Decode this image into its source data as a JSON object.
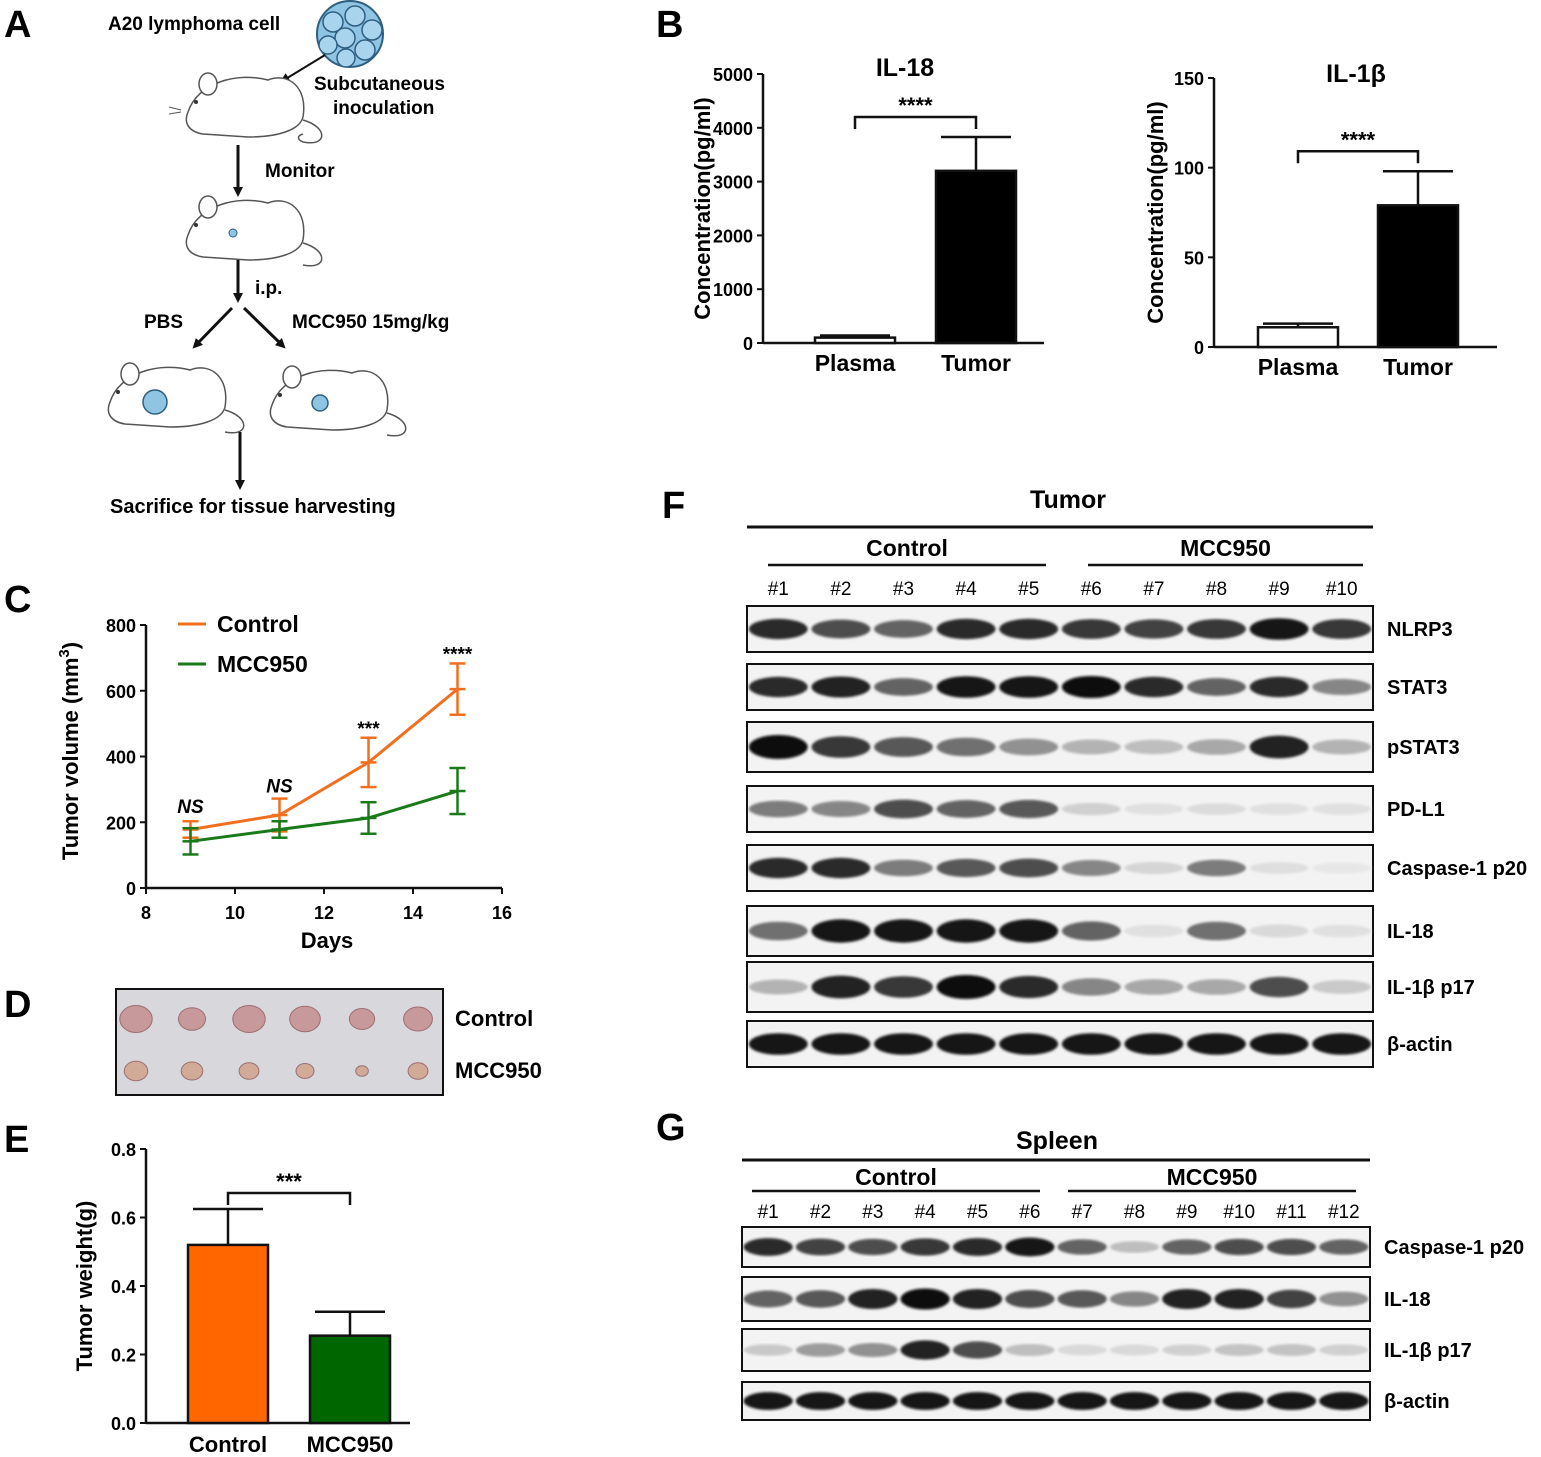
{
  "panel_letters": [
    "A",
    "B",
    "C",
    "D",
    "E",
    "F",
    "G"
  ],
  "schematic": {
    "cell_label": "A20 lymphoma cell",
    "inoculation_label": [
      "Subcutaneous",
      "inoculation"
    ],
    "monitor_label": "Monitor",
    "ip_label": "i.p.",
    "pbs_label": "PBS",
    "mcc_label": "MCC950 15mg/kg",
    "sacrifice_label": "Sacrifice for tissue harvesting"
  },
  "chart_data": [
    {
      "id": "B1",
      "type": "bar",
      "title": "IL-18",
      "xlabel": "",
      "ylabel": "Concentration(pg/ml)",
      "categories": [
        "Plasma",
        "Tumor"
      ],
      "values": [
        100,
        3200
      ],
      "errors": [
        40,
        630
      ],
      "ylim": [
        0,
        5000
      ],
      "yticks": [
        0,
        1000,
        2000,
        3000,
        4000,
        5000
      ],
      "fills": [
        "#ffffff",
        "#000000"
      ],
      "significance": "****"
    },
    {
      "id": "B2",
      "type": "bar",
      "title": "IL-1β",
      "xlabel": "",
      "ylabel": "Concentration(pg/ml)",
      "categories": [
        "Plasma",
        "Tumor"
      ],
      "values": [
        11,
        79
      ],
      "errors": [
        2,
        19
      ],
      "ylim": [
        0,
        150
      ],
      "yticks": [
        0,
        50,
        100,
        150
      ],
      "fills": [
        "#ffffff",
        "#000000"
      ],
      "significance": "****"
    },
    {
      "id": "C",
      "type": "line",
      "xlabel": "Days",
      "ylabel_main": "Tumor volume (mm",
      "ylabel_sup": "3",
      "ylabel_end": ")",
      "xlim": [
        8,
        16
      ],
      "xticks": [
        8,
        10,
        12,
        14,
        16
      ],
      "ylim": [
        0,
        800
      ],
      "yticks": [
        0,
        200,
        400,
        600,
        800
      ],
      "x": [
        9,
        11,
        13,
        15
      ],
      "series": [
        {
          "name": "Control",
          "color": "#f07020",
          "values": [
            178,
            222,
            382,
            605
          ],
          "errors": [
            25,
            50,
            75,
            78
          ]
        },
        {
          "name": "MCC950",
          "color": "#1a7a1a",
          "values": [
            142,
            178,
            213,
            295
          ],
          "errors": [
            40,
            25,
            48,
            70
          ]
        }
      ],
      "annotations": [
        {
          "x": 9,
          "text": "NS",
          "italic": true,
          "y": 228
        },
        {
          "x": 11,
          "text": "NS",
          "italic": true,
          "y": 290
        },
        {
          "x": 13,
          "text": "***",
          "italic": false,
          "y": 465
        },
        {
          "x": 15,
          "text": "****",
          "italic": false,
          "y": 692
        }
      ]
    },
    {
      "id": "E",
      "type": "bar",
      "xlabel": "",
      "ylabel": "Tumor weight(g)",
      "categories": [
        "Control",
        "MCC950"
      ],
      "values": [
        0.52,
        0.255
      ],
      "errors": [
        0.105,
        0.07
      ],
      "ylim": [
        0,
        0.8
      ],
      "yticks": [
        "0.0",
        "0.2",
        "0.4",
        "0.6",
        "0.8"
      ],
      "fills": [
        "#ff6600",
        "#006600"
      ],
      "significance": "***"
    }
  ],
  "photo": {
    "rows": [
      {
        "label": "Control",
        "sizes": [
          0.9,
          0.75,
          0.9,
          0.85,
          0.7,
          0.8
        ],
        "color": "#c8999a"
      },
      {
        "label": "MCC950",
        "sizes": [
          0.65,
          0.6,
          0.55,
          0.5,
          0.35,
          0.55
        ],
        "color": "#d2aa98"
      }
    ]
  },
  "blot_tumor": {
    "title": "Tumor",
    "groups": [
      "Control",
      "MCC950"
    ],
    "lanes": [
      "#1",
      "#2",
      "#3",
      "#4",
      "#5",
      "#6",
      "#7",
      "#8",
      "#9",
      "#10"
    ],
    "rows": [
      {
        "label": "NLRP3",
        "intensity": [
          0.85,
          0.7,
          0.6,
          0.85,
          0.85,
          0.8,
          0.75,
          0.8,
          0.95,
          0.8
        ]
      },
      {
        "label": "STAT3",
        "intensity": [
          0.85,
          0.9,
          0.6,
          0.95,
          0.95,
          1.0,
          0.85,
          0.6,
          0.85,
          0.45
        ]
      },
      {
        "label": "pSTAT3",
        "intensity": [
          1.0,
          0.8,
          0.65,
          0.55,
          0.4,
          0.25,
          0.2,
          0.3,
          0.9,
          0.25
        ]
      },
      {
        "label": "PD-L1",
        "intensity": [
          0.5,
          0.45,
          0.7,
          0.6,
          0.65,
          0.12,
          0.05,
          0.07,
          0.05,
          0.05
        ]
      },
      {
        "label": "Caspase-1 p20",
        "intensity": [
          0.85,
          0.85,
          0.5,
          0.65,
          0.7,
          0.45,
          0.1,
          0.5,
          0.06,
          0.02
        ]
      },
      {
        "label": "IL-18",
        "intensity": [
          0.55,
          0.95,
          0.95,
          0.95,
          0.95,
          0.6,
          0.05,
          0.55,
          0.08,
          0.05
        ]
      },
      {
        "label": "IL-1β p17",
        "intensity": [
          0.25,
          0.9,
          0.8,
          1.0,
          0.85,
          0.45,
          0.3,
          0.3,
          0.7,
          0.15
        ]
      },
      {
        "label": "β-actin",
        "intensity": [
          0.95,
          0.95,
          0.95,
          0.95,
          0.95,
          0.95,
          0.95,
          0.95,
          0.95,
          0.95
        ]
      }
    ]
  },
  "blot_spleen": {
    "title": "Spleen",
    "groups": [
      "Control",
      "MCC950"
    ],
    "lanes": [
      "#1",
      "#2",
      "#3",
      "#4",
      "#5",
      "#6",
      "#7",
      "#8",
      "#9",
      "#10",
      "#11",
      "#12"
    ],
    "rows": [
      {
        "label": "Caspase-1 p20",
        "intensity": [
          0.85,
          0.75,
          0.7,
          0.8,
          0.85,
          0.95,
          0.6,
          0.2,
          0.6,
          0.7,
          0.7,
          0.6
        ]
      },
      {
        "label": "IL-18",
        "intensity": [
          0.6,
          0.65,
          0.9,
          1.0,
          0.9,
          0.7,
          0.65,
          0.45,
          0.9,
          0.9,
          0.75,
          0.4
        ]
      },
      {
        "label": "IL-1β p17",
        "intensity": [
          0.15,
          0.35,
          0.4,
          0.9,
          0.7,
          0.2,
          0.08,
          0.08,
          0.12,
          0.18,
          0.18,
          0.12
        ]
      },
      {
        "label": "β-actin",
        "intensity": [
          0.95,
          0.95,
          0.95,
          0.95,
          0.95,
          0.95,
          0.95,
          0.95,
          0.95,
          0.95,
          0.95,
          0.95
        ]
      }
    ]
  }
}
